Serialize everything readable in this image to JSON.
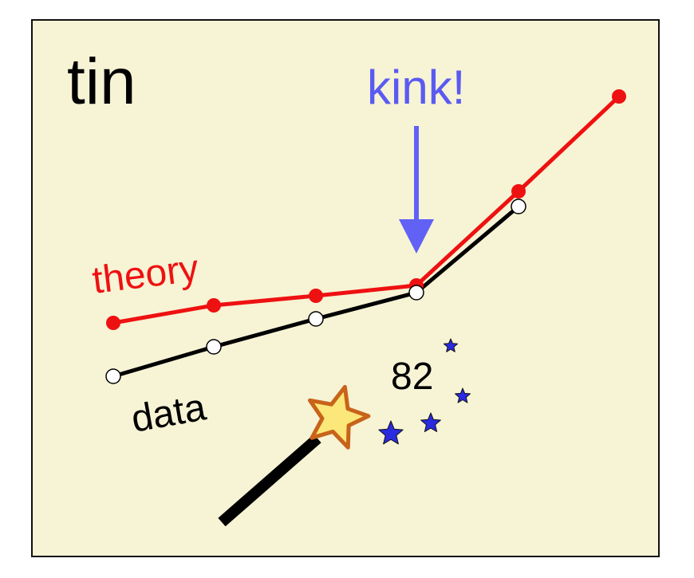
{
  "title": "tin",
  "annotation": "kink!",
  "series_labels": [
    "theory",
    "data"
  ],
  "number": "82"
}
